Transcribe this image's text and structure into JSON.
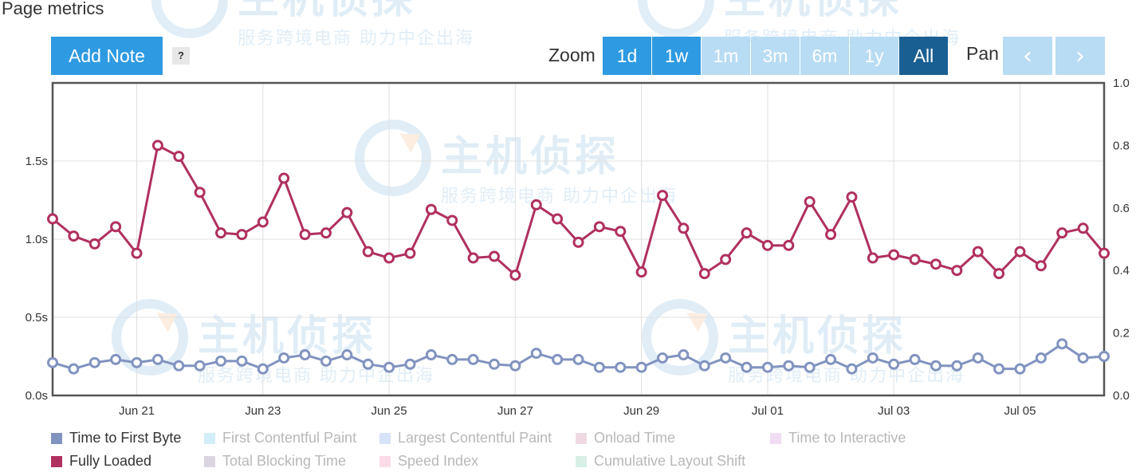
{
  "page": {
    "title": "Page metrics"
  },
  "toolbar": {
    "add_note_label": "Add Note",
    "help_label": "?",
    "zoom_label": "Zoom",
    "zoom_options": [
      {
        "label": "1d",
        "state": "enabled"
      },
      {
        "label": "1w",
        "state": "enabled"
      },
      {
        "label": "1m",
        "state": "disabled"
      },
      {
        "label": "3m",
        "state": "disabled"
      },
      {
        "label": "6m",
        "state": "disabled"
      },
      {
        "label": "1y",
        "state": "disabled"
      },
      {
        "label": "All",
        "state": "active"
      }
    ],
    "pan_label": "Pan",
    "pan_prev_icon": "chevron-left-icon",
    "pan_next_icon": "chevron-right-icon"
  },
  "watermark": {
    "logo_text": "主机侦探",
    "slogan": "服务跨境电商 助力中企出海"
  },
  "legend": [
    {
      "label": "Time to First Byte",
      "color": "#8193bf",
      "active": true
    },
    {
      "label": "First Contentful Paint",
      "color": "#8fd4ee",
      "active": false
    },
    {
      "label": "Largest Contentful Paint",
      "color": "#9bb8ee",
      "active": false
    },
    {
      "label": "Onload Time",
      "color": "#d7a2bb",
      "active": false
    },
    {
      "label": "Time to Interactive",
      "color": "#d9a9e0",
      "active": false
    },
    {
      "label": "Fully Loaded",
      "color": "#b03060",
      "active": true
    },
    {
      "label": "Total Blocking Time",
      "color": "#a695b3",
      "active": false
    },
    {
      "label": "Speed Index",
      "color": "#f7a6c6",
      "active": false
    },
    {
      "label": "Cumulative Layout Shift",
      "color": "#9ad8be",
      "active": false
    }
  ],
  "chart_data": {
    "type": "line",
    "title": "Page metrics",
    "xlabel": "",
    "ylabel": "",
    "x_tick_labels": [
      "Jun 21",
      "Jun 23",
      "Jun 25",
      "Jun 27",
      "Jun 29",
      "Jul 01",
      "Jul 03",
      "Jul 05"
    ],
    "x_tick_indices": [
      4,
      10,
      16,
      22,
      28,
      34,
      40,
      46
    ],
    "y_ticks": [
      "0.0s",
      "0.5s",
      "1.0s",
      "1.5s"
    ],
    "y_tick_values": [
      0,
      0.5,
      1.0,
      1.5
    ],
    "ylim": [
      0,
      2.0
    ],
    "y2_ticks": [
      "0.0",
      "0.2",
      "0.4",
      "0.6",
      "0.8",
      "1.0"
    ],
    "y2_tick_values": [
      0,
      0.2,
      0.4,
      0.6,
      0.8,
      1.0
    ],
    "y2lim": [
      0,
      1.0
    ],
    "grid": true,
    "legend_position": "bottom",
    "series": [
      {
        "name": "Fully Loaded",
        "color": "#b03060",
        "values": [
          1.13,
          1.02,
          0.97,
          1.08,
          0.91,
          1.6,
          1.53,
          1.3,
          1.04,
          1.03,
          1.11,
          1.39,
          1.03,
          1.04,
          1.17,
          0.92,
          0.88,
          0.91,
          1.19,
          1.12,
          0.88,
          0.89,
          0.77,
          1.22,
          1.13,
          0.98,
          1.08,
          1.05,
          0.79,
          1.28,
          1.07,
          0.78,
          0.87,
          1.04,
          0.96,
          0.96,
          1.24,
          1.03,
          1.27,
          0.88,
          0.9,
          0.87,
          0.84,
          0.8,
          0.92,
          0.78,
          0.92,
          0.83,
          1.04,
          1.07,
          0.91
        ]
      },
      {
        "name": "Time to First Byte",
        "color": "#8193bf",
        "values": [
          0.21,
          0.17,
          0.21,
          0.23,
          0.21,
          0.23,
          0.19,
          0.19,
          0.22,
          0.22,
          0.17,
          0.24,
          0.26,
          0.22,
          0.26,
          0.2,
          0.18,
          0.2,
          0.26,
          0.23,
          0.23,
          0.2,
          0.19,
          0.27,
          0.23,
          0.23,
          0.18,
          0.18,
          0.18,
          0.24,
          0.26,
          0.19,
          0.24,
          0.18,
          0.18,
          0.19,
          0.18,
          0.23,
          0.17,
          0.24,
          0.2,
          0.23,
          0.19,
          0.19,
          0.24,
          0.17,
          0.17,
          0.24,
          0.33,
          0.24,
          0.25
        ]
      }
    ]
  }
}
